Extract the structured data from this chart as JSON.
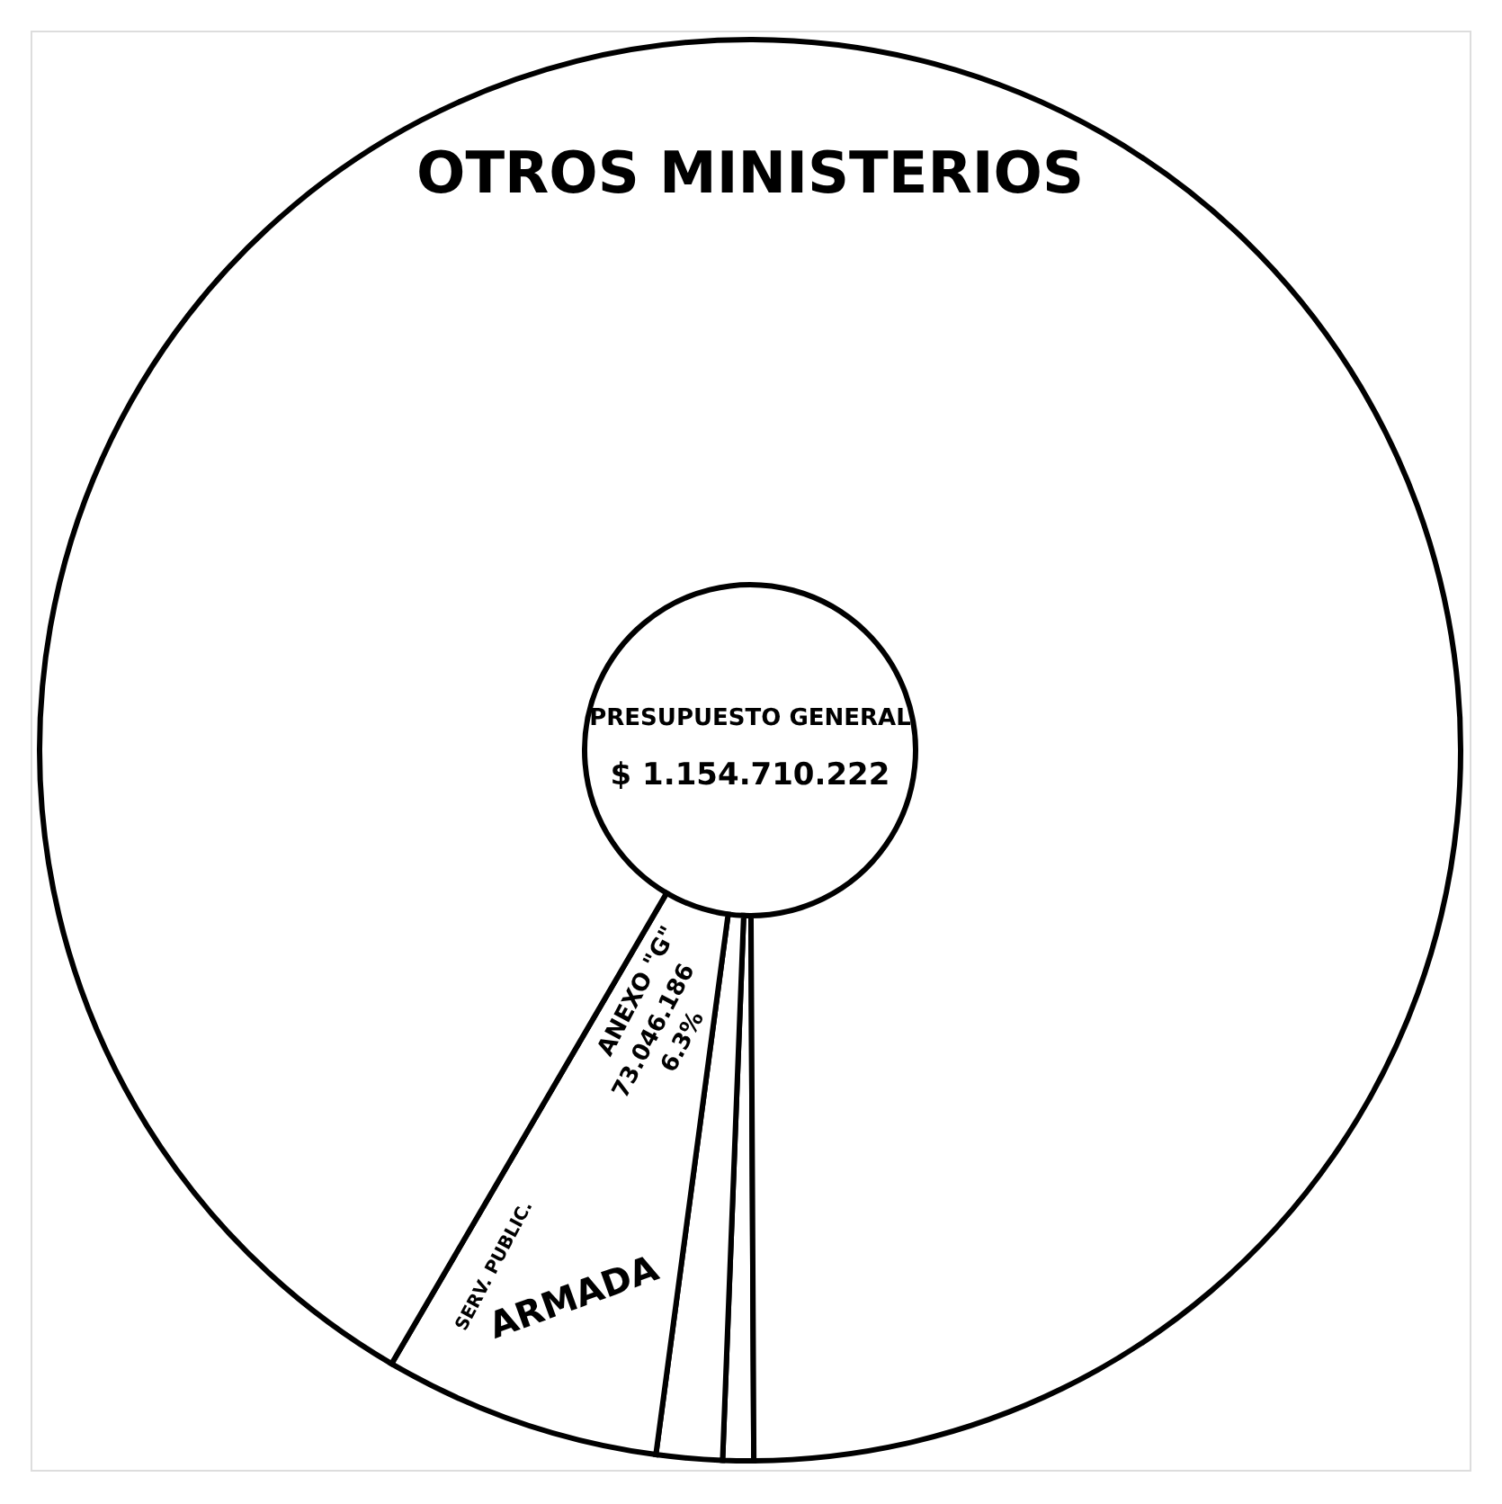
{
  "chart_data": {
    "type": "donut",
    "title": "PRESUPUESTO GENERAL",
    "subtitle": "$ 1.154.710.222",
    "categories": [
      null,
      null,
      "ANEXO \"G\"",
      "OTROS MINISTERIOS"
    ],
    "values": [
      0.7,
      1.5,
      6.3,
      91.5
    ],
    "colors": [
      "#ffffff",
      "#ffffff",
      "#ffffff",
      "#ffffff"
    ],
    "value_labels": [
      null,
      null,
      "6.3%",
      null
    ],
    "annotations": [
      "73.046.186",
      "ARMADA",
      "SERV. PUBLIC."
    ]
  }
}
